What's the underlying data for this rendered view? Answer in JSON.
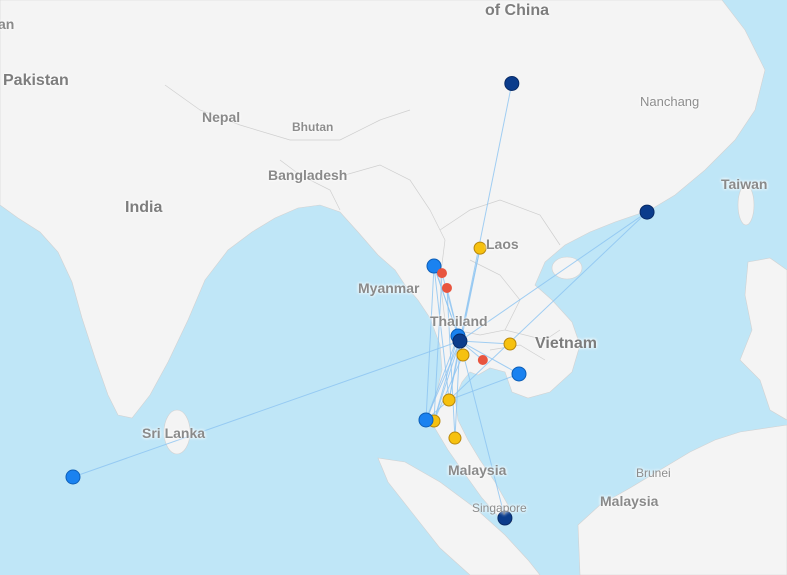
{
  "map": {
    "water_color": "#bfe6f7",
    "land_color": "#f4f4f4",
    "labels": {
      "china": "of China",
      "pakistan": "Pakistan",
      "an": "an",
      "nepal": "Nepal",
      "bhutan": "Bhutan",
      "bangladesh": "Bangladesh",
      "india": "India",
      "nanchang": "Nanchang",
      "taiwan": "Taiwan",
      "laos": "Laos",
      "myanmar": "Myanmar",
      "thailand": "Thailand",
      "vietnam": "Vietnam",
      "sri_lanka": "Sri Lanka",
      "malaysia_west": "Malaysia",
      "brunei": "Brunei",
      "malaysia_east": "Malaysia",
      "singapore": "Singapore"
    },
    "marker_colors": {
      "dark": "#0b3c8c",
      "blue": "#1a82f0",
      "yellow": "#f6c10f",
      "red": "#e8553f"
    },
    "route_color": "#8cc4f2",
    "markers": [
      {
        "lat": 31.2,
        "lon": 104.4,
        "kind": "dark"
      },
      {
        "lat": 22.45,
        "lon": 114.2,
        "kind": "dark"
      },
      {
        "lat": 20.0,
        "lon": 102.1,
        "kind": "yellow"
      },
      {
        "lat": 18.78,
        "lon": 98.76,
        "kind": "blue"
      },
      {
        "lat": 18.3,
        "lon": 99.34,
        "kind": "red"
      },
      {
        "lat": 17.29,
        "lon": 99.7,
        "kind": "red"
      },
      {
        "lat": 14.02,
        "lon": 100.5,
        "kind": "blue"
      },
      {
        "lat": 13.68,
        "lon": 100.64,
        "kind": "dark"
      },
      {
        "lat": 12.73,
        "lon": 100.86,
        "kind": "yellow"
      },
      {
        "lat": 12.39,
        "lon": 102.3,
        "kind": "red"
      },
      {
        "lat": 13.48,
        "lon": 104.27,
        "kind": "yellow"
      },
      {
        "lat": 11.44,
        "lon": 104.92,
        "kind": "blue"
      },
      {
        "lat": 9.67,
        "lon": 99.85,
        "kind": "yellow"
      },
      {
        "lat": 8.24,
        "lon": 98.76,
        "kind": "yellow"
      },
      {
        "lat": 8.31,
        "lon": 98.18,
        "kind": "blue"
      },
      {
        "lat": 7.08,
        "lon": 100.28,
        "kind": "yellow"
      },
      {
        "lat": 1.64,
        "lon": 103.9,
        "kind": "dark"
      },
      {
        "lat": 4.43,
        "lon": 72.6,
        "kind": "blue"
      }
    ],
    "routes": [
      [
        7,
        0
      ],
      [
        7,
        1
      ],
      [
        7,
        2
      ],
      [
        7,
        3
      ],
      [
        7,
        4
      ],
      [
        7,
        5
      ],
      [
        7,
        8
      ],
      [
        7,
        9
      ],
      [
        7,
        10
      ],
      [
        7,
        11
      ],
      [
        7,
        12
      ],
      [
        7,
        13
      ],
      [
        7,
        14
      ],
      [
        7,
        15
      ],
      [
        7,
        16
      ],
      [
        7,
        17
      ],
      [
        3,
        14
      ],
      [
        3,
        12
      ],
      [
        4,
        13
      ],
      [
        5,
        15
      ],
      [
        6,
        14
      ],
      [
        6,
        13
      ],
      [
        12,
        14
      ],
      [
        12,
        11
      ],
      [
        12,
        1
      ],
      [
        8,
        13
      ],
      [
        3,
        7
      ],
      [
        2,
        12
      ]
    ]
  }
}
